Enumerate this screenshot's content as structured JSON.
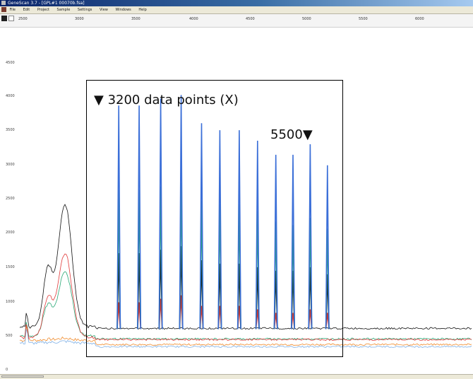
{
  "window": {
    "title": "GeneScan 3.7 - [GPL#1 00070b.fsa]"
  },
  "menubar": {
    "items": [
      "File",
      "Edit",
      "Project",
      "Sample",
      "Settings",
      "View",
      "Windows",
      "Help"
    ]
  },
  "ruler": {
    "ticks": [
      "2500",
      "3000",
      "3500",
      "4000",
      "4500",
      "5000",
      "5500",
      "6000"
    ]
  },
  "yaxis": {
    "ticks": [
      "4500",
      "4000",
      "3500",
      "3000",
      "2500",
      "2000",
      "1500",
      "1000",
      "500",
      "0"
    ]
  },
  "annotation": {
    "main_label": "3200 data points (X)",
    "end_label": "5500",
    "marker_color": "#000000"
  },
  "chart_data": {
    "type": "line",
    "xlabel": "",
    "ylabel": "",
    "xlim": [
      2300,
      6500
    ],
    "ylim": [
      0,
      4900
    ],
    "series": [
      {
        "color": "#3b6fd8",
        "x": [
          3220,
          3410,
          3610,
          3800,
          3990,
          4160,
          4340,
          4510,
          4680,
          4840,
          5000,
          5160
        ],
        "values": [
          3800,
          3800,
          3900,
          3950,
          3550,
          3450,
          3450,
          3300,
          3100,
          3100,
          3250,
          2950
        ]
      },
      {
        "color": "#2aa876",
        "x": [
          3220,
          3410,
          3610,
          3800,
          3990,
          4160,
          4340,
          4510,
          4680,
          4840,
          5000,
          5160
        ],
        "values": [
          2600,
          2600,
          2650,
          2700,
          2450,
          2400,
          2400,
          2300,
          2150,
          2100,
          2200,
          2050
        ]
      },
      {
        "color": "#111111",
        "x": [
          3220,
          3410,
          3610,
          3800,
          3990,
          4160,
          4340,
          4510,
          4680,
          4840,
          5000,
          5160
        ],
        "values": [
          1700,
          1700,
          1750,
          1800,
          1600,
          1550,
          1550,
          1500,
          1450,
          1450,
          1500,
          1400
        ]
      },
      {
        "color": "#e03a3a",
        "x": [
          3220,
          3410,
          3610,
          3800,
          3990,
          4160,
          4340,
          4510,
          4680,
          4840,
          5000,
          5160
        ],
        "values": [
          1000,
          1000,
          1050,
          1100,
          950,
          950,
          950,
          900,
          850,
          850,
          900,
          850
        ]
      }
    ],
    "primer_peak": {
      "black_height": 2400,
      "red_height": 1700,
      "green_height": 1450,
      "center_x": 2720
    },
    "baselines": {
      "black": 650,
      "orange": 460,
      "green": 520,
      "blue": 420
    },
    "grid": false
  }
}
